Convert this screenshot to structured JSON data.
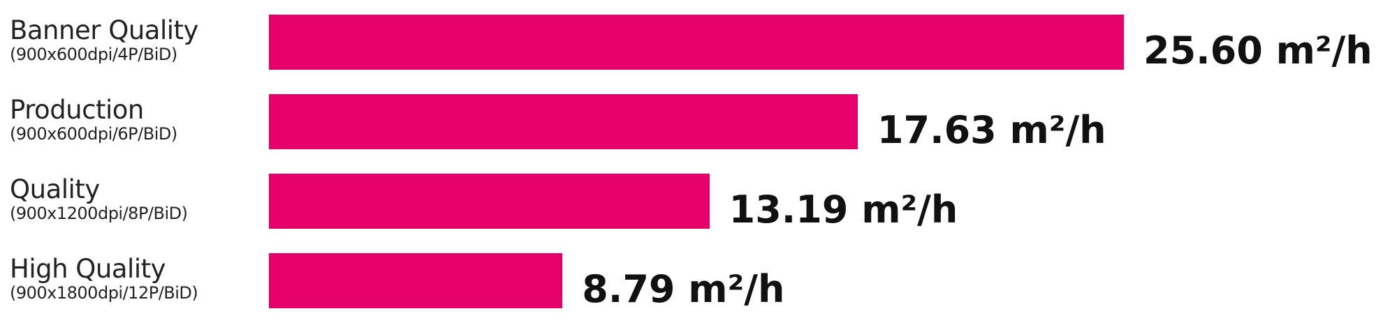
{
  "chart_data": {
    "type": "bar",
    "orientation": "horizontal",
    "categories": [
      {
        "name": "Banner Quality",
        "detail": "(900x600dpi/4P/BiD)"
      },
      {
        "name": "Production",
        "detail": "(900x600dpi/6P/BiD)"
      },
      {
        "name": "Quality",
        "detail": "(900x1200dpi/8P/BiD)"
      },
      {
        "name": "High Quality",
        "detail": "(900x1800dpi/12P/BiD)"
      }
    ],
    "values": [
      25.6,
      17.63,
      13.19,
      8.79
    ],
    "value_labels": [
      "25.60 m²/h",
      "17.63 m²/h",
      "13.19 m²/h",
      "8.79 m²/h"
    ],
    "unit": "m²/h",
    "xlim": [
      0,
      25.6
    ],
    "grid": false,
    "bar_color": "#E5006A"
  }
}
